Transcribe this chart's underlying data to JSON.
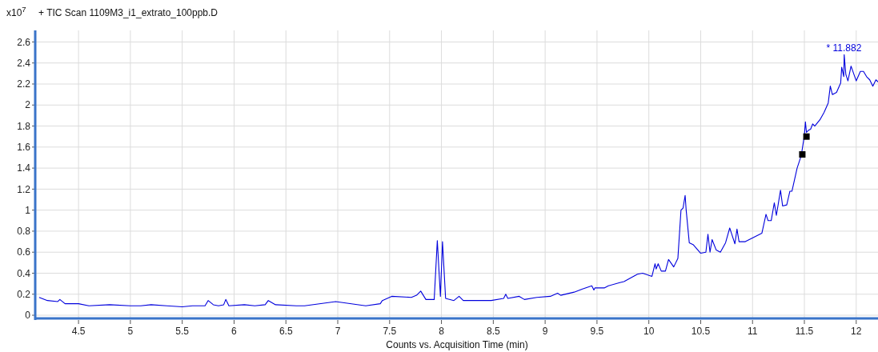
{
  "chart_data": {
    "type": "line",
    "title": "+ TIC Scan 1109M3_i1_extrato_100ppb.D",
    "xlabel": "Counts vs. Acquisition Time (min)",
    "ylabel": "x10$^{7}$",
    "xlim": [
      4.09,
      12.21
    ],
    "ylim": [
      -0.03,
      2.71
    ],
    "xticks": [
      4.5,
      5,
      5.5,
      6,
      6.5,
      7,
      7.5,
      8,
      8.5,
      9,
      9.5,
      10,
      10.5,
      11,
      11.5,
      12
    ],
    "yticks": [
      0,
      0.2,
      0.4,
      0.6,
      0.8,
      1,
      1.2,
      1.4,
      1.6,
      1.8,
      2,
      2.2,
      2.4,
      2.6
    ],
    "grid": true,
    "annotations": [
      {
        "text": "* 11.882",
        "x": 11.882,
        "y": 2.48
      }
    ],
    "series": [
      {
        "color": "#0000dd",
        "marker": "none",
        "x": [
          4.12,
          4.2,
          4.3,
          4.32,
          4.37,
          4.5,
          4.6,
          4.8,
          5.0,
          5.1,
          5.2,
          5.35,
          5.5,
          5.6,
          5.72,
          5.75,
          5.8,
          5.85,
          5.9,
          5.92,
          5.95,
          6.1,
          6.2,
          6.3,
          6.33,
          6.4,
          6.6,
          6.68,
          6.98,
          7.27,
          7.41,
          7.43,
          7.52,
          7.71,
          7.76,
          7.8,
          7.85,
          7.93,
          7.96,
          7.99,
          8.01,
          8.04,
          8.12,
          8.17,
          8.21,
          8.48,
          8.6,
          8.62,
          8.64,
          8.75,
          8.8,
          8.92,
          9.05,
          9.12,
          9.15,
          9.28,
          9.36,
          9.45,
          9.47,
          9.48,
          9.57,
          9.61,
          9.72,
          9.76,
          9.89,
          9.94,
          10.03,
          10.06,
          10.07,
          10.09,
          10.12,
          10.16,
          10.19,
          10.24,
          10.28,
          10.31,
          10.33,
          10.35,
          10.36,
          10.39,
          10.43,
          10.5,
          10.55,
          10.57,
          10.59,
          10.61,
          10.65,
          10.69,
          10.74,
          10.78,
          10.8,
          10.83,
          10.85,
          10.87,
          10.93,
          11.01,
          11.09,
          11.13,
          11.15,
          11.18,
          11.21,
          11.23,
          11.27,
          11.29,
          11.33,
          11.36,
          11.38,
          11.43,
          11.47,
          11.5,
          11.51,
          11.52,
          11.54,
          11.56,
          11.58,
          11.6,
          11.65,
          11.69,
          11.73,
          11.75,
          11.77,
          11.81,
          11.85,
          11.86,
          11.88,
          11.884,
          11.9,
          11.92,
          11.95,
          12.0,
          12.04,
          12.07,
          12.1,
          12.13,
          12.16,
          12.19,
          12.21
        ],
        "values": [
          0.17,
          0.14,
          0.13,
          0.15,
          0.11,
          0.11,
          0.09,
          0.1,
          0.09,
          0.09,
          0.1,
          0.09,
          0.08,
          0.09,
          0.09,
          0.14,
          0.1,
          0.09,
          0.1,
          0.15,
          0.09,
          0.1,
          0.09,
          0.1,
          0.14,
          0.1,
          0.09,
          0.09,
          0.13,
          0.09,
          0.11,
          0.14,
          0.18,
          0.17,
          0.19,
          0.23,
          0.15,
          0.15,
          0.71,
          0.18,
          0.7,
          0.16,
          0.14,
          0.18,
          0.14,
          0.14,
          0.16,
          0.2,
          0.16,
          0.18,
          0.15,
          0.17,
          0.18,
          0.21,
          0.19,
          0.22,
          0.25,
          0.28,
          0.24,
          0.26,
          0.26,
          0.28,
          0.31,
          0.32,
          0.39,
          0.4,
          0.37,
          0.49,
          0.44,
          0.49,
          0.42,
          0.42,
          0.53,
          0.46,
          0.54,
          1.0,
          1.02,
          1.14,
          1.0,
          0.69,
          0.67,
          0.59,
          0.6,
          0.77,
          0.6,
          0.72,
          0.62,
          0.6,
          0.69,
          0.83,
          0.77,
          0.68,
          0.82,
          0.7,
          0.7,
          0.74,
          0.78,
          0.96,
          0.9,
          0.9,
          1.07,
          0.95,
          1.19,
          1.04,
          1.05,
          1.18,
          1.18,
          1.4,
          1.52,
          1.71,
          1.84,
          1.74,
          1.76,
          1.77,
          1.82,
          1.8,
          1.86,
          1.93,
          2.02,
          2.18,
          2.1,
          2.12,
          2.21,
          2.36,
          2.27,
          2.48,
          2.29,
          2.23,
          2.37,
          2.23,
          2.32,
          2.32,
          2.27,
          2.24,
          2.18,
          2.24,
          2.22
        ]
      },
      {
        "type": "scatter",
        "color": "#000000",
        "marker": "square",
        "x": [
          11.48,
          11.52
        ],
        "values": [
          1.53,
          1.7
        ]
      }
    ]
  }
}
